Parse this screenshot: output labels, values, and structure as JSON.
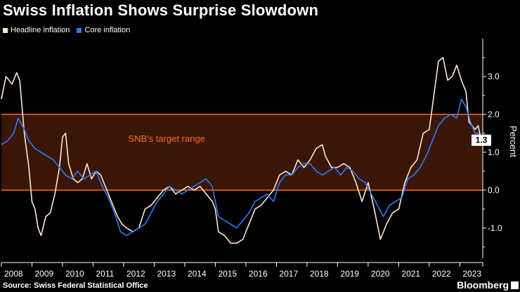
{
  "title": "Swiss Inflation Shows Surprise Slowdown",
  "legend": {
    "headline_label": "Headline inflation",
    "core_label": "Core inflation"
  },
  "colors": {
    "background": "#000000",
    "headline": "#ffe8cc",
    "core": "#2e7cf6",
    "target_band": "#3a1606",
    "target_line": "#ff6a1a",
    "axis": "#ffffff"
  },
  "footer": {
    "source": "Source: Swiss Federal Statistical Office",
    "brand": "Bloomberg"
  },
  "chart_data": {
    "type": "line",
    "title": "Swiss Inflation Shows Surprise Slowdown",
    "xlabel": "",
    "ylabel": "Percent",
    "ylim": [
      -1.8,
      4.0
    ],
    "yticks": [
      -1.0,
      0.0,
      1.0,
      2.0,
      3.0
    ],
    "ytick_labels": [
      "-1.0",
      "0.0",
      "1.0",
      "2.0",
      "3.0"
    ],
    "xlim": [
      2008.0,
      2023.75
    ],
    "xticks": [
      2008,
      2009,
      2010,
      2011,
      2012,
      2013,
      2014,
      2015,
      2016,
      2017,
      2018,
      2019,
      2020,
      2021,
      2022,
      2023
    ],
    "xtick_labels": [
      "2008",
      "2009",
      "2010",
      "2011",
      "2012",
      "2013",
      "2014",
      "2015",
      "2016",
      "2017",
      "2018",
      "2019",
      "2020",
      "2021",
      "2022",
      "2023"
    ],
    "target_range": {
      "low": 0.0,
      "high": 2.0,
      "label": "SNB's target range"
    },
    "last_value_label": "1.3",
    "series": [
      {
        "name": "Headline inflation",
        "x": [
          2008.0,
          2008.15,
          2008.35,
          2008.5,
          2008.6,
          2008.75,
          2008.9,
          2009.0,
          2009.1,
          2009.2,
          2009.3,
          2009.45,
          2009.6,
          2009.75,
          2009.9,
          2010.0,
          2010.1,
          2010.2,
          2010.35,
          2010.5,
          2010.65,
          2010.8,
          2010.95,
          2011.1,
          2011.25,
          2011.4,
          2011.55,
          2011.65,
          2011.8,
          2011.95,
          2012.1,
          2012.3,
          2012.5,
          2012.7,
          2012.9,
          2013.1,
          2013.3,
          2013.5,
          2013.7,
          2013.9,
          2014.1,
          2014.3,
          2014.5,
          2014.7,
          2014.9,
          2015.0,
          2015.1,
          2015.3,
          2015.5,
          2015.7,
          2015.9,
          2016.1,
          2016.3,
          2016.5,
          2016.7,
          2016.9,
          2017.1,
          2017.3,
          2017.5,
          2017.7,
          2017.9,
          2018.1,
          2018.3,
          2018.5,
          2018.6,
          2018.8,
          2019.0,
          2019.2,
          2019.4,
          2019.6,
          2019.8,
          2020.0,
          2020.2,
          2020.4,
          2020.6,
          2020.8,
          2021.0,
          2021.2,
          2021.4,
          2021.6,
          2021.8,
          2022.0,
          2022.15,
          2022.3,
          2022.45,
          2022.6,
          2022.75,
          2022.9,
          2023.05,
          2023.2,
          2023.3,
          2023.4,
          2023.5,
          2023.6,
          2023.7
        ],
        "values": [
          2.4,
          3.0,
          2.8,
          3.1,
          2.9,
          1.5,
          0.6,
          -0.3,
          -0.5,
          -1.0,
          -1.2,
          -0.7,
          -0.6,
          -0.1,
          0.6,
          1.4,
          1.5,
          0.7,
          0.3,
          0.2,
          0.3,
          0.7,
          0.3,
          0.5,
          0.4,
          0.1,
          -0.2,
          -0.4,
          -0.7,
          -0.9,
          -1.0,
          -1.1,
          -1.0,
          -0.5,
          -0.4,
          -0.2,
          0.0,
          0.1,
          -0.1,
          0.0,
          0.1,
          0.0,
          0.1,
          -0.1,
          -0.3,
          -0.5,
          -1.1,
          -1.2,
          -1.4,
          -1.4,
          -1.3,
          -0.9,
          -0.5,
          -0.4,
          -0.2,
          0.0,
          0.4,
          0.5,
          0.4,
          0.8,
          0.6,
          0.8,
          1.1,
          1.2,
          0.9,
          0.6,
          0.6,
          0.7,
          0.6,
          0.2,
          -0.3,
          0.2,
          -0.5,
          -1.3,
          -0.9,
          -0.6,
          -0.5,
          0.2,
          0.6,
          0.8,
          1.5,
          1.6,
          2.5,
          3.4,
          3.5,
          2.9,
          3.0,
          3.3,
          2.9,
          2.6,
          1.8,
          1.7,
          1.6,
          1.7,
          1.3
        ]
      },
      {
        "name": "Core inflation",
        "x": [
          2008.0,
          2008.2,
          2008.4,
          2008.55,
          2008.75,
          2008.9,
          2009.1,
          2009.3,
          2009.5,
          2009.7,
          2009.9,
          2010.1,
          2010.3,
          2010.5,
          2010.7,
          2010.9,
          2011.1,
          2011.3,
          2011.5,
          2011.7,
          2011.9,
          2012.1,
          2012.3,
          2012.5,
          2012.7,
          2012.9,
          2013.1,
          2013.3,
          2013.5,
          2013.7,
          2013.9,
          2014.1,
          2014.3,
          2014.5,
          2014.7,
          2014.9,
          2015.1,
          2015.3,
          2015.5,
          2015.7,
          2015.9,
          2016.1,
          2016.3,
          2016.5,
          2016.7,
          2016.9,
          2017.1,
          2017.3,
          2017.5,
          2017.7,
          2017.9,
          2018.1,
          2018.3,
          2018.5,
          2018.7,
          2018.9,
          2019.1,
          2019.3,
          2019.5,
          2019.7,
          2019.9,
          2020.1,
          2020.3,
          2020.5,
          2020.7,
          2020.9,
          2021.1,
          2021.3,
          2021.5,
          2021.7,
          2021.9,
          2022.1,
          2022.3,
          2022.5,
          2022.7,
          2022.9,
          2023.05,
          2023.2,
          2023.35,
          2023.5,
          2023.6,
          2023.7
        ],
        "values": [
          1.2,
          1.3,
          1.5,
          1.9,
          1.6,
          1.3,
          1.1,
          1.0,
          0.9,
          0.8,
          0.6,
          0.4,
          0.3,
          0.5,
          0.3,
          0.4,
          0.5,
          0.1,
          -0.2,
          -0.6,
          -1.1,
          -1.2,
          -1.1,
          -1.0,
          -0.9,
          -0.6,
          -0.3,
          -0.1,
          0.1,
          0.0,
          -0.1,
          0.0,
          0.1,
          0.2,
          0.3,
          0.1,
          -0.7,
          -0.8,
          -0.9,
          -1.0,
          -0.8,
          -0.6,
          -0.3,
          -0.2,
          -0.1,
          -0.3,
          0.2,
          0.4,
          0.4,
          0.6,
          0.7,
          0.7,
          0.5,
          0.4,
          0.5,
          0.6,
          0.4,
          0.6,
          0.5,
          0.3,
          0.2,
          -0.1,
          -0.4,
          -0.7,
          -0.4,
          -0.3,
          -0.2,
          0.3,
          0.4,
          0.6,
          0.9,
          1.3,
          1.7,
          1.9,
          2.0,
          1.9,
          2.4,
          2.2,
          1.8,
          1.5,
          1.5,
          1.3
        ]
      }
    ]
  }
}
